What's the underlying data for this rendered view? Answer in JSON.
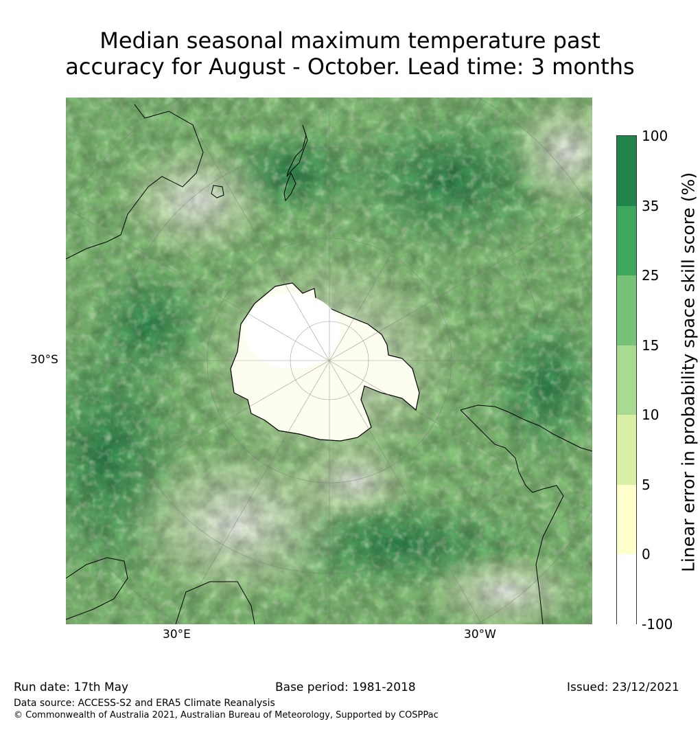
{
  "title_line1": "Median seasonal maximum temperature past",
  "title_line2": "accuracy for August - October. Lead time: 3 months",
  "map": {
    "lat_label": "30°S",
    "lon_labels": [
      "30°E",
      "30°W"
    ]
  },
  "colorbar": {
    "label": "Linear error in probability space skill score (%)",
    "ticks": [
      "100",
      "35",
      "25",
      "15",
      "10",
      "5",
      "0",
      "-100"
    ],
    "colors": [
      "#22844a",
      "#3ea75e",
      "#76c276",
      "#a8da92",
      "#d9efa6",
      "#ffffcc",
      "#ffffff"
    ]
  },
  "footer": {
    "run_date": "Run date: 17th May",
    "base_period": "Base period: 1981-2018",
    "issued": "Issued: 23/12/2021",
    "data_source": "Data source: ACCESS-S2 and ERA5 Climate Reanalysis",
    "copyright": "© Commonwealth of Australia 2021, Australian Bureau of Meteorology, Supported by COSPPac"
  }
}
